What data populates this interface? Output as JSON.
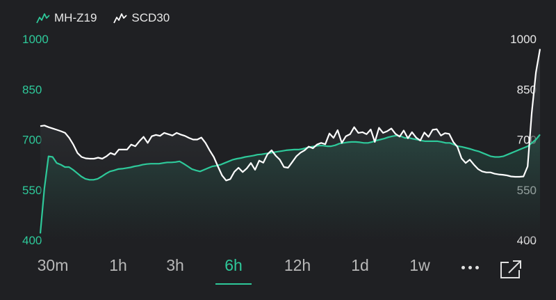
{
  "legend": [
    {
      "label": "MH-Z19",
      "color": "#2ec99a",
      "icon": "sparkline-icon"
    },
    {
      "label": "SCD30",
      "color": "#ffffff",
      "icon": "sparkline-icon"
    }
  ],
  "ranges": [
    "30m",
    "1h",
    "3h",
    "6h",
    "12h",
    "1d",
    "1w"
  ],
  "active_range": "6h",
  "more_icon": "more-horizontal-icon",
  "expand_icon": "expand-icon",
  "colors": {
    "background": "#1f2023",
    "mhz19": "#2ec99a",
    "scd30": "#ffffff",
    "tick_right": "#e8e8e8"
  },
  "chart_data": {
    "type": "line",
    "ylim": [
      400,
      1000
    ],
    "y_ticks_left": [
      "1000",
      "850",
      "700",
      "550",
      "400"
    ],
    "y_ticks_right": [
      "1000",
      "850",
      "700",
      "550",
      "400"
    ],
    "grid": false,
    "series": [
      {
        "name": "MH-Z19",
        "axis": "left",
        "color": "#2ec99a",
        "values": [
          420,
          555,
          650,
          648,
          630,
          625,
          618,
          618,
          610,
          600,
          590,
          583,
          580,
          580,
          583,
          590,
          598,
          605,
          608,
          612,
          613,
          615,
          617,
          620,
          622,
          625,
          627,
          628,
          628,
          628,
          630,
          632,
          632,
          633,
          635,
          628,
          620,
          612,
          608,
          605,
          610,
          615,
          620,
          622,
          625,
          630,
          635,
          640,
          643,
          645,
          648,
          650,
          652,
          655,
          656,
          658,
          660,
          662,
          664,
          666,
          668,
          669,
          670,
          670,
          672,
          675,
          678,
          680,
          682,
          682,
          680,
          680,
          683,
          688,
          690,
          692,
          693,
          693,
          692,
          690,
          690,
          693,
          697,
          700,
          703,
          707,
          710,
          712,
          710,
          705,
          705,
          702,
          700,
          697,
          695,
          695,
          695,
          695,
          693,
          690,
          690,
          685,
          680,
          678,
          675,
          672,
          668,
          665,
          660,
          655,
          650,
          648,
          648,
          650,
          655,
          660,
          665,
          670,
          675,
          680,
          690,
          700,
          715
        ]
      },
      {
        "name": "SCD30",
        "axis": "right",
        "color": "#ffffff",
        "values": [
          740,
          742,
          737,
          733,
          729,
          725,
          720,
          705,
          685,
          660,
          648,
          644,
          643,
          643,
          646,
          643,
          650,
          660,
          655,
          670,
          670,
          670,
          685,
          680,
          695,
          708,
          690,
          710,
          714,
          711,
          720,
          716,
          712,
          720,
          715,
          711,
          705,
          700,
          700,
          706,
          690,
          668,
          648,
          620,
          593,
          578,
          582,
          604,
          616,
          603,
          614,
          630,
          610,
          637,
          631,
          656,
          668,
          652,
          640,
          618,
          616,
          633,
          650,
          661,
          668,
          679,
          674,
          685,
          690,
          686,
          718,
          705,
          728,
          690,
          710,
          716,
          737,
          720,
          722,
          716,
          730,
          693,
          735,
          720,
          725,
          733,
          717,
          709,
          727,
          704,
          722,
          706,
          697,
          721,
          708,
          729,
          731,
          712,
          719,
          717,
          693,
          678,
          644,
          630,
          640,
          625,
          612,
          605,
          602,
          602,
          598,
          596,
          595,
          593,
          590,
          589,
          589,
          590,
          620,
          780,
          900,
          970
        ]
      }
    ]
  }
}
